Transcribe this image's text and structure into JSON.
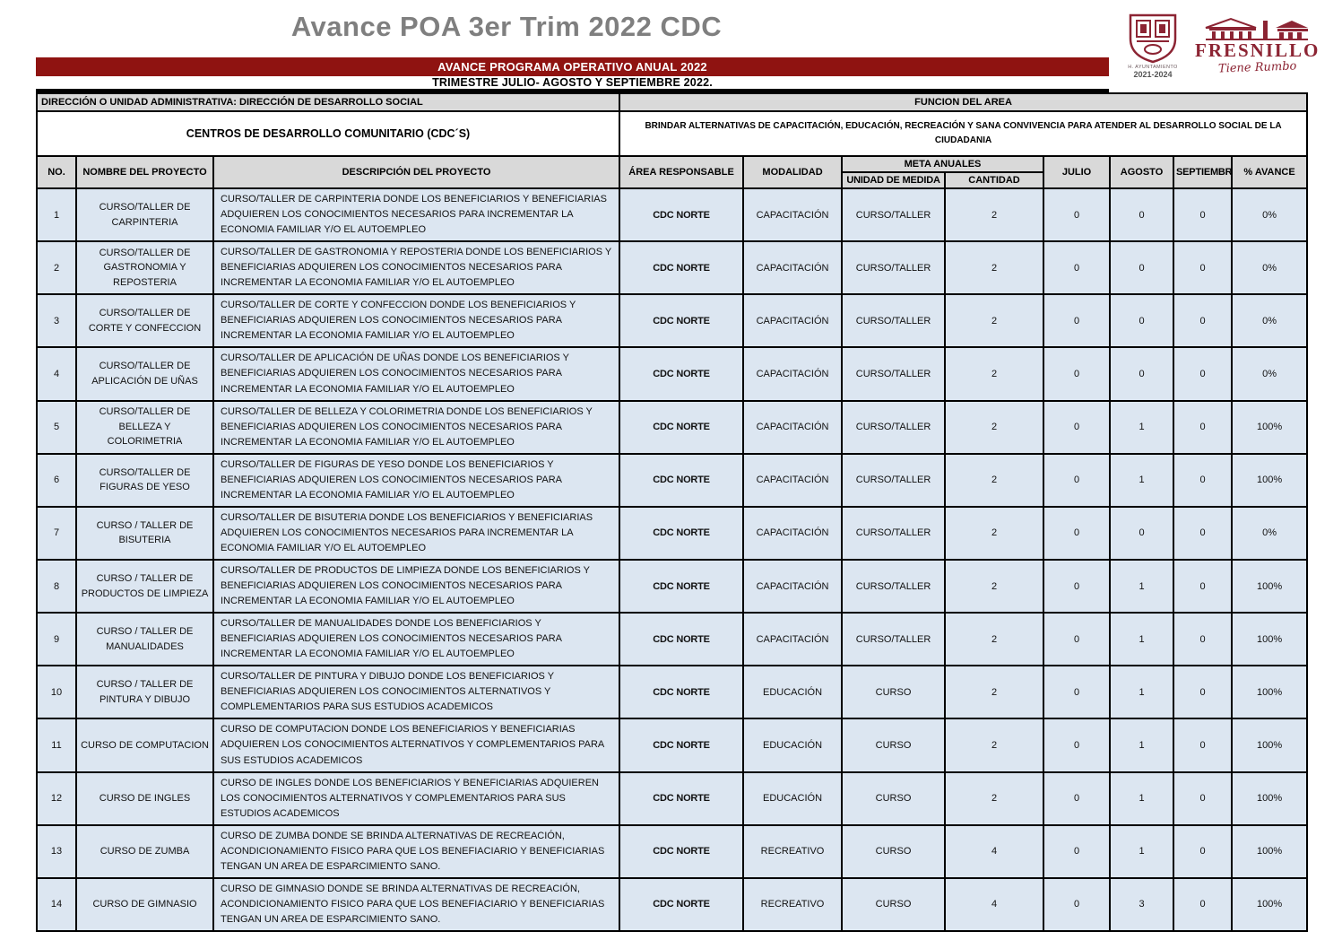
{
  "page": {
    "title": "Avance POA 3er Trim 2022 CDC"
  },
  "logo": {
    "ayuntamiento": "H. AYUNTAMIENTO",
    "years": "2021-2024",
    "name": "FRESNILLO",
    "tagline": "Tiene Rumbo"
  },
  "banner": {
    "line1": "AVANCE PROGRAMA OPERATIVO ANUAL 2022",
    "line2": "TRIMESTRE JULIO- AGOSTO Y SEPTIEMBRE 2022."
  },
  "info": {
    "direccion": "DIRECCIÓN O UNIDAD ADMINISTRATIVA: DIRECCIÓN DE DESARROLLO SOCIAL",
    "funcion_header": "FUNCION DEL AREA",
    "centros": "CENTROS DE DESARROLLO COMUNITARIO (CDC´S)",
    "funcion_text": "BRINDAR ALTERNATIVAS DE CAPACITACIÓN, EDUCACIÓN, RECREACIÓN Y SANA CONVIVENCIA PARA ATENDER AL DESARROLLO SOCIAL DE LA CIUDADANIA"
  },
  "table": {
    "columns": {
      "no": "NO.",
      "nombre": "NOMBRE DEL PROYECTO",
      "descripcion": "DESCRIPCIÓN DEL PROYECTO",
      "area": "ÁREA RESPONSABLE",
      "modalidad": "MODALIDAD",
      "meta": "META ANUALES",
      "unidad": "UNIDAD DE MEDIDA",
      "cantidad": "CANTIDAD",
      "julio": "JULIO",
      "agosto": "AGOSTO",
      "septiembre": "SEPTIEMBRE",
      "avance": "% AVANCE"
    },
    "rows": [
      {
        "no": "1",
        "nombre": "CURSO/TALLER  DE CARPINTERIA",
        "descripcion": "CURSO/TALLER DE CARPINTERIA DONDE LOS BENEFICIARIOS Y BENEFICIARIAS ADQUIEREN LOS CONOCIMIENTOS NECESARIOS PARA INCREMENTAR LA ECONOMIA FAMILIAR Y/O EL AUTOEMPLEO",
        "area": "CDC NORTE",
        "modalidad": "CAPACITACIÓN",
        "unidad": "CURSO/TALLER",
        "cantidad": "2",
        "julio": "0",
        "agosto": "0",
        "septiembre": "0",
        "avance": "0%"
      },
      {
        "no": "2",
        "nombre": "CURSO/TALLER  DE GASTRONOMIA Y REPOSTERIA",
        "descripcion": "CURSO/TALLER DE GASTRONOMIA  Y REPOSTERIA DONDE LOS BENEFICIARIOS Y BENEFICIARIAS ADQUIEREN LOS CONOCIMIENTOS NECESARIOS PARA INCREMENTAR LA ECONOMIA FAMILIAR Y/O EL AUTOEMPLEO",
        "area": "CDC NORTE",
        "modalidad": "CAPACITACIÓN",
        "unidad": "CURSO/TALLER",
        "cantidad": "2",
        "julio": "0",
        "agosto": "0",
        "septiembre": "0",
        "avance": "0%"
      },
      {
        "no": "3",
        "nombre": "CURSO/TALLER  DE CORTE Y CONFECCION",
        "descripcion": "CURSO/TALLER DE CORTE Y CONFECCION DONDE LOS BENEFICIARIOS Y BENEFICIARIAS ADQUIEREN LOS CONOCIMIENTOS NECESARIOS PARA INCREMENTAR LA ECONOMIA FAMILIAR Y/O EL AUTOEMPLEO",
        "area": "CDC NORTE",
        "modalidad": "CAPACITACIÓN",
        "unidad": "CURSO/TALLER",
        "cantidad": "2",
        "julio": "0",
        "agosto": "0",
        "septiembre": "0",
        "avance": "0%"
      },
      {
        "no": "4",
        "nombre": "CURSO/TALLER  DE APLICACIÓN DE UÑAS",
        "descripcion": "CURSO/TALLER DE APLICACIÓN DE UÑAS DONDE LOS BENEFICIARIOS Y BENEFICIARIAS ADQUIEREN LOS CONOCIMIENTOS NECESARIOS PARA INCREMENTAR LA ECONOMIA FAMILIAR Y/O EL AUTOEMPLEO",
        "area": "CDC NORTE",
        "modalidad": "CAPACITACIÓN",
        "unidad": "CURSO/TALLER",
        "cantidad": "2",
        "julio": "0",
        "agosto": "0",
        "septiembre": "0",
        "avance": "0%"
      },
      {
        "no": "5",
        "nombre": "CURSO/TALLER DE BELLEZA Y COLORIMETRIA",
        "descripcion": "CURSO/TALLER DE BELLEZA Y COLORIMETRIA DONDE LOS BENEFICIARIOS Y BENEFICIARIAS ADQUIEREN LOS CONOCIMIENTOS NECESARIOS PARA INCREMENTAR LA ECONOMIA FAMILIAR Y/O EL AUTOEMPLEO",
        "area": "CDC NORTE",
        "modalidad": "CAPACITACIÓN",
        "unidad": "CURSO/TALLER",
        "cantidad": "2",
        "julio": "0",
        "agosto": "1",
        "septiembre": "0",
        "avance": "100%"
      },
      {
        "no": "6",
        "nombre": "CURSO/TALLER DE FIGURAS DE YESO",
        "descripcion": "CURSO/TALLER DE FIGURAS DE YESO DONDE LOS BENEFICIARIOS Y BENEFICIARIAS ADQUIEREN LOS CONOCIMIENTOS NECESARIOS PARA INCREMENTAR LA ECONOMIA FAMILIAR Y/O EL AUTOEMPLEO",
        "area": "CDC NORTE",
        "modalidad": "CAPACITACIÓN",
        "unidad": "CURSO/TALLER",
        "cantidad": "2",
        "julio": "0",
        "agosto": "1",
        "septiembre": "0",
        "avance": "100%"
      },
      {
        "no": "7",
        "nombre": "CURSO / TALLER DE BISUTERIA",
        "descripcion": "CURSO/TALLER DE BISUTERIA DONDE LOS BENEFICIARIOS Y BENEFICIARIAS ADQUIEREN LOS CONOCIMIENTOS NECESARIOS PARA INCREMENTAR LA ECONOMIA FAMILIAR Y/O EL AUTOEMPLEO",
        "area": "CDC NORTE",
        "modalidad": "CAPACITACIÓN",
        "unidad": "CURSO/TALLER",
        "cantidad": "2",
        "julio": "0",
        "agosto": "0",
        "septiembre": "0",
        "avance": "0%"
      },
      {
        "no": "8",
        "nombre": "CURSO / TALLER DE PRODUCTOS DE LIMPIEZA",
        "descripcion": "CURSO/TALLER DE PRODUCTOS DE LIMPIEZA DONDE LOS BENEFICIARIOS Y BENEFICIARIAS ADQUIEREN LOS CONOCIMIENTOS NECESARIOS PARA INCREMENTAR LA ECONOMIA FAMILIAR Y/O EL AUTOEMPLEO",
        "area": "CDC NORTE",
        "modalidad": "CAPACITACIÓN",
        "unidad": "CURSO/TALLER",
        "cantidad": "2",
        "julio": "0",
        "agosto": "1",
        "septiembre": "0",
        "avance": "100%"
      },
      {
        "no": "9",
        "nombre": "CURSO / TALLER DE MANUALIDADES",
        "descripcion": "CURSO/TALLER DE MANUALIDADES DONDE LOS BENEFICIARIOS Y BENEFICIARIAS ADQUIEREN LOS CONOCIMIENTOS NECESARIOS PARA INCREMENTAR LA ECONOMIA FAMILIAR Y/O EL AUTOEMPLEO",
        "area": "CDC NORTE",
        "modalidad": "CAPACITACIÓN",
        "unidad": "CURSO/TALLER",
        "cantidad": "2",
        "julio": "0",
        "agosto": "1",
        "septiembre": "0",
        "avance": "100%"
      },
      {
        "no": "10",
        "nombre": "CURSO / TALLER DE PINTURA Y DIBUJO",
        "descripcion": "CURSO/TALLER DE PINTURA Y DIBUJO DONDE LOS BENEFICIARIOS Y BENEFICIARIAS ADQUIEREN LOS CONOCIMIENTOS ALTERNATIVOS Y COMPLEMENTARIOS PARA SUS ESTUDIOS ACADEMICOS",
        "area": "CDC NORTE",
        "modalidad": "EDUCACIÓN",
        "unidad": "CURSO",
        "cantidad": "2",
        "julio": "0",
        "agosto": "1",
        "septiembre": "0",
        "avance": "100%"
      },
      {
        "no": "11",
        "nombre": "CURSO DE COMPUTACION",
        "descripcion": "CURSO DE COMPUTACION DONDE LOS BENEFICIARIOS Y BENEFICIARIAS ADQUIEREN LOS CONOCIMIENTOS ALTERNATIVOS Y COMPLEMENTARIOS PARA SUS ESTUDIOS ACADEMICOS",
        "area": "CDC NORTE",
        "modalidad": "EDUCACIÓN",
        "unidad": "CURSO",
        "cantidad": "2",
        "julio": "0",
        "agosto": "1",
        "septiembre": "0",
        "avance": "100%"
      },
      {
        "no": "12",
        "nombre": "CURSO DE INGLES",
        "descripcion": "CURSO DE INGLES DONDE LOS BENEFICIARIOS Y BENEFICIARIAS ADQUIEREN LOS CONOCIMIENTOS ALTERNATIVOS Y COMPLEMENTARIOS PARA SUS ESTUDIOS ACADEMICOS",
        "area": "CDC NORTE",
        "modalidad": "EDUCACIÓN",
        "unidad": "CURSO",
        "cantidad": "2",
        "julio": "0",
        "agosto": "1",
        "septiembre": "0",
        "avance": "100%"
      },
      {
        "no": "13",
        "nombre": "CURSO DE ZUMBA",
        "descripcion": "CURSO DE ZUMBA DONDE SE BRINDA ALTERNATIVAS DE RECREACIÓN, ACONDICIONAMIENTO FISICO PARA QUE LOS BENEFIACIARIO Y BENEFICIARIAS TENGAN UN AREA DE ESPARCIMIENTO SANO.",
        "area": "CDC NORTE",
        "modalidad": "RECREATIVO",
        "unidad": "CURSO",
        "cantidad": "4",
        "julio": "0",
        "agosto": "1",
        "septiembre": "0",
        "avance": "100%"
      },
      {
        "no": "14",
        "nombre": "CURSO DE GIMNASIO",
        "descripcion": "CURSO DE GIMNASIO DONDE SE BRINDA ALTERNATIVAS DE RECREACIÓN, ACONDICIONAMIENTO FISICO PARA QUE LOS BENEFIACIARIO Y BENEFICIARIAS TENGAN UN AREA DE ESPARCIMIENTO SANO.",
        "area": "CDC NORTE",
        "modalidad": "RECREATIVO",
        "unidad": "CURSO",
        "cantidad": "4",
        "julio": "0",
        "agosto": "3",
        "septiembre": "0",
        "avance": "100%"
      }
    ]
  },
  "colors": {
    "banner_red": "#8f1311",
    "header_gray": "#d9d9d9",
    "row_blue": "#dce6f1",
    "logo_maroon": "#8c2433",
    "title_gray": "#7f7f7f"
  }
}
